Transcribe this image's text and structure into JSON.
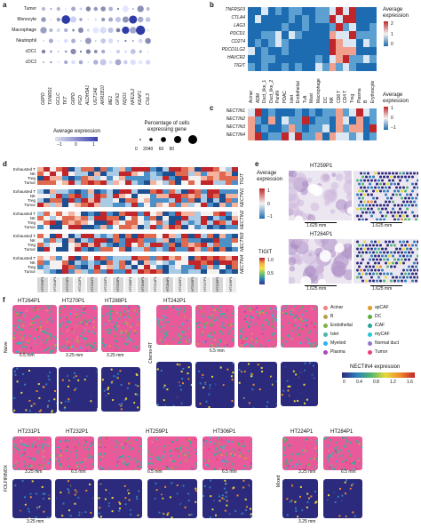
{
  "panels": {
    "a": "a",
    "b": "b",
    "c": "c",
    "d": "d",
    "e": "e",
    "f": "f"
  },
  "panel_a": {
    "rows": [
      "Tumor",
      "Monocyte",
      "Macrophage",
      "Neutrophil",
      "cDC1",
      "cDC2"
    ],
    "genes": [
      "G6PD",
      "TXNRD1",
      "GCLC",
      "TKT",
      "G6PD",
      "PGD",
      "ALDH3A1",
      "UGT1A6",
      "AKR1B10",
      "ME1",
      "GPX2",
      "NQO1",
      "NFE2L2",
      "KEAP1",
      "CUL3"
    ],
    "legend_expr_title": "Average expression",
    "legend_expr_ticks": [
      "−1",
      "0",
      "1"
    ],
    "legend_size_title": "Percentage of cells expressing gene",
    "legend_size_ticks": [
      "0",
      "20",
      "40",
      "60",
      "80"
    ]
  },
  "panel_b": {
    "genes": [
      "TNFRSF9",
      "CTLA4",
      "LAG3",
      "PDCD1",
      "CD274",
      "PDCD1LG2",
      "HAVCR2",
      "TIGIT"
    ],
    "cell_types": [
      "Acinar",
      "ADM",
      "Duct_like_1",
      "Duct_like_2",
      "PanIN",
      "PDAC",
      "Islet",
      "Endothelial",
      "Tuft",
      "Mast",
      "Macrophage",
      "DC",
      "NK",
      "CD8 T",
      "CD4 T",
      "Treg",
      "Plasma",
      "B",
      "Erythrocyte"
    ],
    "legend_title": "Average expression",
    "legend_ticks": [
      "2",
      "1",
      "0"
    ]
  },
  "panel_c": {
    "genes": [
      "NECTIN1",
      "NECTIN2",
      "NECTIN3",
      "NECTIN4"
    ],
    "legend_title": "Average expression",
    "legend_ticks": [
      "1",
      "0",
      "−1"
    ]
  },
  "panel_d": {
    "row_labels": [
      "Exhausted T",
      "NK",
      "Treg",
      "Tumor"
    ],
    "group_labels": [
      "TIGIT",
      "NECTIN1",
      "NECTIN2",
      "NECTIN3",
      "NECTIN4"
    ],
    "samples": [
      "HT259P1",
      "HT264P1",
      "HT270P1",
      "HT242P1",
      "HT231P1",
      "HT232P1",
      "HT253P1",
      "HT288P1",
      "HT306P1",
      "HT224P1",
      "HT284P1",
      "HT185P1",
      "HT190P1",
      "HT227P1",
      "HT166P1",
      "HT169P1"
    ]
  },
  "panel_e": {
    "samples": [
      "HT259P1",
      "HT264P1"
    ],
    "scale_labels": [
      "1.625 mm",
      "1.625 mm",
      "1.625 mm",
      "1.625 mm"
    ],
    "legend1_title": "Average expression",
    "legend1_ticks": [
      "1",
      "0",
      "−1"
    ],
    "legend2_title": "TIGIT",
    "legend2_ticks": [
      "1.0",
      "0.5"
    ]
  },
  "panel_f": {
    "group_labels": [
      "Naive",
      "Chemo-RT",
      "FOLFIRINOX",
      "Mixed"
    ],
    "samples_row1": [
      "HT264P1",
      "HT270P1",
      "HT288P1",
      "HT242P1"
    ],
    "samples_row2": [
      "HT231P1",
      "HT232P1",
      "HT259P1",
      "HT306P1",
      "HT224P1",
      "HT284P1"
    ],
    "scales_row1": [
      "6.5 mm",
      "3.25 mm",
      "3.25 mm",
      "6.5 mm"
    ],
    "scales_row2": [
      "3.25 mm",
      "6.5 mm",
      "6.5 mm",
      "6.5 mm",
      "3.25 mm",
      "6.5 mm",
      "3.25 mm",
      "3.25 mm"
    ],
    "legend_items": [
      {
        "label": "Acinar",
        "color": "#f08080"
      },
      {
        "label": "apCAF",
        "color": "#e09a2a"
      },
      {
        "label": "B",
        "color": "#b9a34a"
      },
      {
        "label": "DC",
        "color": "#5cad3c"
      },
      {
        "label": "Endothelial",
        "color": "#7cb342"
      },
      {
        "label": "iCAF",
        "color": "#26a69a"
      },
      {
        "label": "Islet",
        "color": "#4db6ac"
      },
      {
        "label": "myCAF",
        "color": "#26c6da"
      },
      {
        "label": "Myeloid",
        "color": "#29b6f6"
      },
      {
        "label": "Normal duct",
        "color": "#9575cd"
      },
      {
        "label": "Plasma",
        "color": "#ab47bc"
      },
      {
        "label": "Tumor",
        "color": "#ec407a"
      }
    ],
    "expr_legend_title": "NECTIN4 expression",
    "expr_legend_ticks": [
      "0",
      "0.4",
      "0.8",
      "1.2",
      "1.6"
    ]
  }
}
